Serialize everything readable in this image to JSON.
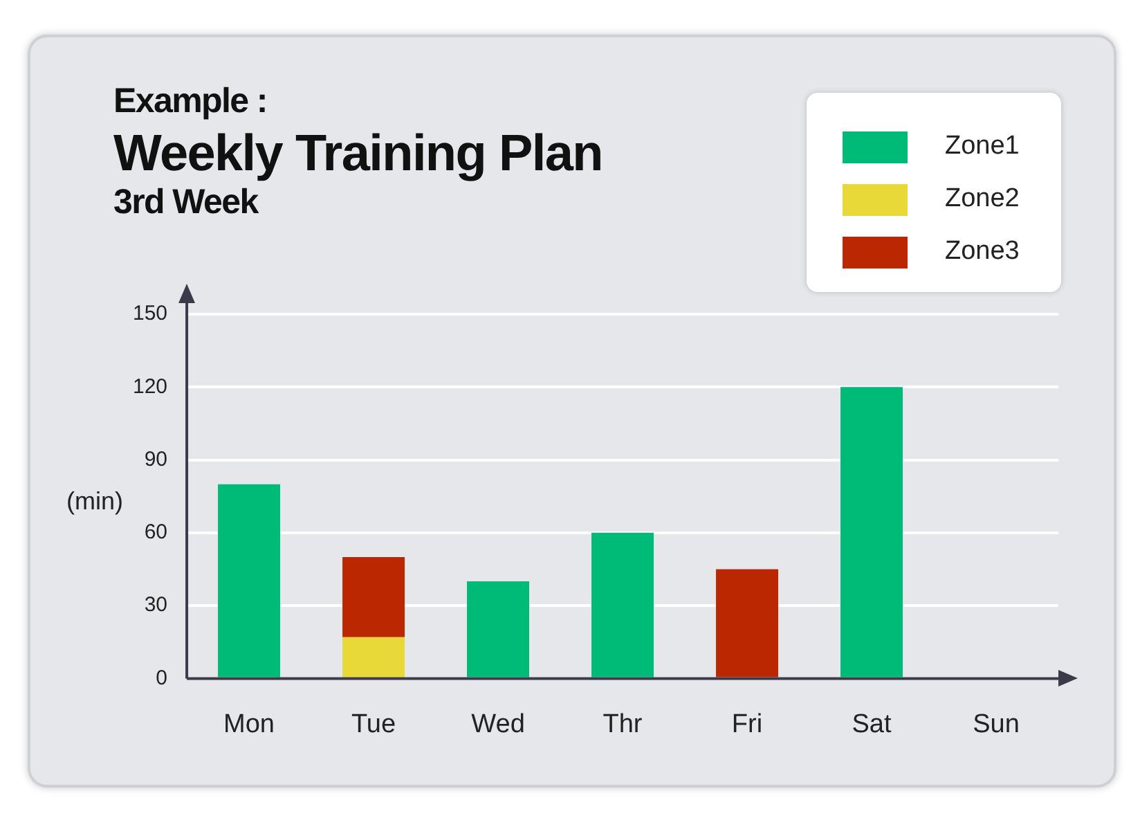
{
  "chart_data": {
    "type": "bar",
    "title": "Weekly Training Plan",
    "subtitle": "3rd Week",
    "annotations": [
      "Example :"
    ],
    "ylabel": "(min)",
    "categories": [
      "Mon",
      "Tue",
      "Wed",
      "Thr",
      "Fri",
      "Sat",
      "Sun"
    ],
    "series": [
      {
        "name": "Zone1",
        "color": "#00bb77",
        "values": [
          80,
          0,
          40,
          60,
          0,
          120,
          0
        ]
      },
      {
        "name": "Zone2",
        "color": "#e8d838",
        "values": [
          0,
          17,
          0,
          0,
          0,
          0,
          0
        ]
      },
      {
        "name": "Zone3",
        "color": "#bb2800",
        "values": [
          0,
          33,
          0,
          0,
          45,
          0,
          0
        ]
      }
    ],
    "stacked": true,
    "ylim": [
      0,
      150
    ],
    "yticks": [
      0,
      30,
      60,
      90,
      120,
      150
    ],
    "grid": "y",
    "legend": "top right"
  }
}
